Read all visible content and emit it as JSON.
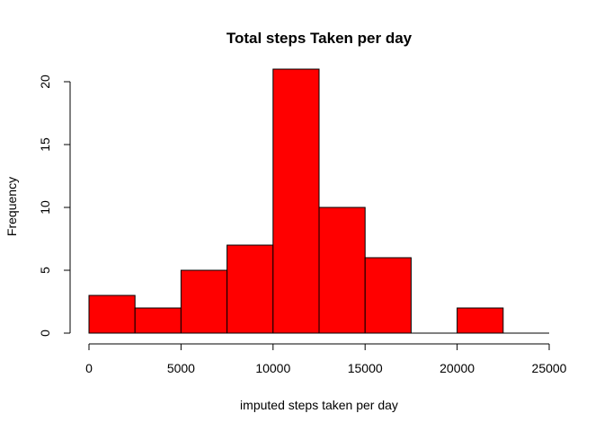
{
  "chart_data": {
    "type": "bar",
    "title": "Total steps Taken per day",
    "xlabel": "imputed steps taken per day",
    "ylabel": "Frequency",
    "bin_edges": [
      0,
      2500,
      5000,
      7500,
      10000,
      12500,
      15000,
      17500,
      20000,
      22500,
      25000
    ],
    "values": [
      3,
      2,
      5,
      7,
      21,
      10,
      6,
      0,
      2,
      0
    ],
    "xlim": [
      0,
      25000
    ],
    "ylim": [
      0,
      21
    ],
    "x_ticks": [
      0,
      5000,
      10000,
      15000,
      20000,
      25000
    ],
    "x_tick_labels": [
      "0",
      "5000",
      "10000",
      "15000",
      "20000",
      "25000"
    ],
    "y_ticks": [
      0,
      5,
      10,
      15,
      20
    ],
    "y_tick_labels": [
      "0",
      "5",
      "10",
      "15",
      "20"
    ],
    "grid": false,
    "bar_color": "#ff0000",
    "bar_border_color": "#000000"
  }
}
